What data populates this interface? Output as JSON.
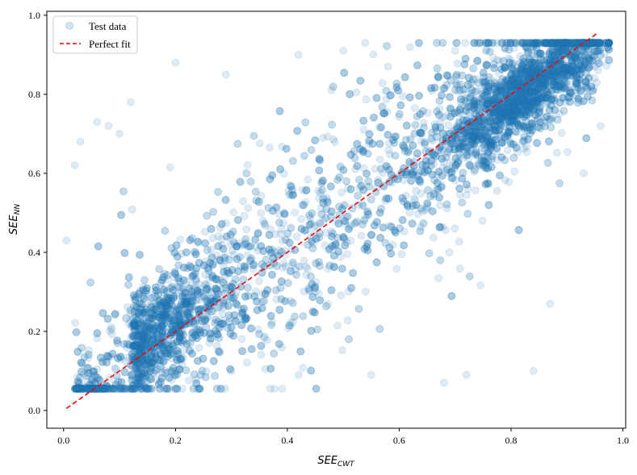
{
  "chart_data": {
    "type": "scatter",
    "xlabel": "SEE",
    "xlabel_sub": "CWT",
    "ylabel": "SEE",
    "ylabel_sub": "NN",
    "xlim": [
      -0.03,
      1.005
    ],
    "ylim": [
      -0.045,
      1.01
    ],
    "xticks": [
      "0.0",
      "0.2",
      "0.4",
      "0.6",
      "0.8",
      "1.0"
    ],
    "yticks": [
      "0.0",
      "0.2",
      "0.4",
      "0.6",
      "0.8",
      "1.0"
    ],
    "legend_position": "top-left",
    "series": [
      {
        "name": "Test data",
        "kind": "scatter",
        "color": "#1f77b4",
        "alpha": 0.15,
        "approx_point_count": 9000,
        "trend": "y ≈ x with spread; dense cluster near (0.8, 0.8)",
        "sample_points": [
          [
            0.005,
            0.43
          ],
          [
            0.02,
            0.62
          ],
          [
            0.03,
            0.68
          ],
          [
            0.06,
            0.73
          ],
          [
            0.08,
            0.72
          ],
          [
            0.1,
            0.7
          ],
          [
            0.12,
            0.78
          ],
          [
            0.2,
            0.88
          ],
          [
            0.29,
            0.85
          ],
          [
            0.42,
            0.9
          ],
          [
            0.5,
            0.91
          ],
          [
            0.58,
            0.87
          ],
          [
            0.7,
            0.91
          ],
          [
            0.82,
            0.93
          ],
          [
            0.88,
            0.89
          ],
          [
            0.92,
            0.87
          ],
          [
            0.95,
            0.87
          ],
          [
            0.96,
            0.72
          ],
          [
            0.93,
            0.6
          ],
          [
            0.87,
            0.27
          ],
          [
            0.84,
            0.1
          ],
          [
            0.72,
            0.09
          ],
          [
            0.68,
            0.07
          ],
          [
            0.55,
            0.09
          ],
          [
            0.42,
            0.09
          ],
          [
            0.05,
            0.06
          ],
          [
            0.1,
            0.06
          ],
          [
            0.2,
            0.1
          ],
          [
            0.3,
            0.1
          ],
          [
            0.45,
            0.3
          ]
        ]
      },
      {
        "name": "Perfect fit",
        "kind": "line",
        "style": "dashed",
        "color": "#ff0000",
        "x": [
          0.005,
          0.955
        ],
        "y": [
          0.005,
          0.955
        ]
      }
    ]
  }
}
